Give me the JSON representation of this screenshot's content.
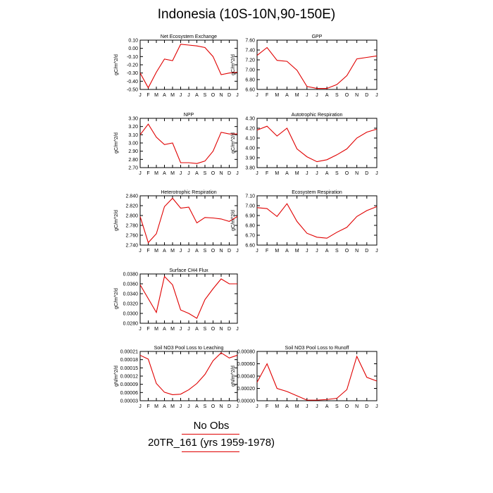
{
  "title": "Indonesia (10S-10N,90-150E)",
  "legend": {
    "obs_label": "No Obs",
    "case_label": "20TR_161 (yrs 1959-1978)",
    "line_color": "#e00000"
  },
  "chart_data": [
    {
      "type": "line",
      "title": "Net Ecosystem Exchange",
      "ylabel": "gC/m^2/d",
      "categories": [
        "J",
        "F",
        "M",
        "A",
        "M",
        "J",
        "J",
        "A",
        "S",
        "O",
        "N",
        "D",
        "J"
      ],
      "yticks": [
        "0.10",
        "0.00",
        "-0.10",
        "-0.20",
        "-0.30",
        "-0.40",
        "-0.50"
      ],
      "ylim": [
        -0.5,
        0.1
      ],
      "values": [
        -0.3,
        -0.48,
        -0.29,
        -0.13,
        -0.15,
        0.05,
        0.04,
        0.03,
        0.01,
        -0.1,
        -0.32,
        -0.3,
        -0.29
      ]
    },
    {
      "type": "line",
      "title": "GPP",
      "ylabel": "gC/m^2/d",
      "categories": [
        "J",
        "F",
        "M",
        "A",
        "M",
        "J",
        "J",
        "A",
        "S",
        "O",
        "N",
        "D",
        "J"
      ],
      "yticks": [
        "7.60",
        "7.40",
        "7.20",
        "7.00",
        "6.80",
        "6.60"
      ],
      "ylim": [
        6.6,
        7.6
      ],
      "values": [
        7.29,
        7.45,
        7.19,
        7.17,
        6.99,
        6.66,
        6.62,
        6.62,
        6.7,
        6.88,
        7.22,
        7.25,
        7.28
      ]
    },
    {
      "type": "line",
      "title": "NPP",
      "ylabel": "gC/m^2/d",
      "categories": [
        "J",
        "F",
        "M",
        "A",
        "M",
        "J",
        "J",
        "A",
        "S",
        "O",
        "N",
        "D",
        "J"
      ],
      "yticks": [
        "3.30",
        "3.20",
        "3.10",
        "3.00",
        "2.90",
        "2.80",
        "2.70"
      ],
      "ylim": [
        2.7,
        3.3
      ],
      "values": [
        3.1,
        3.23,
        3.07,
        2.98,
        3.0,
        2.76,
        2.76,
        2.75,
        2.78,
        2.9,
        3.13,
        3.11,
        3.11
      ]
    },
    {
      "type": "line",
      "title": "Autotrophic Respiration",
      "ylabel": "gC/m^2/d",
      "categories": [
        "J",
        "F",
        "M",
        "A",
        "M",
        "J",
        "J",
        "A",
        "S",
        "O",
        "N",
        "D",
        "J"
      ],
      "yticks": [
        "4.30",
        "4.20",
        "4.10",
        "4.00",
        "3.90",
        "3.80"
      ],
      "ylim": [
        3.8,
        4.3
      ],
      "values": [
        4.18,
        4.22,
        4.12,
        4.2,
        3.99,
        3.91,
        3.86,
        3.88,
        3.93,
        3.99,
        4.1,
        4.16,
        4.19
      ]
    },
    {
      "type": "line",
      "title": "Heterotrophic Respiration",
      "ylabel": "gC/m^2/d",
      "categories": [
        "J",
        "F",
        "M",
        "A",
        "M",
        "J",
        "J",
        "A",
        "S",
        "O",
        "N",
        "D",
        "J"
      ],
      "yticks": [
        "2.840",
        "2.820",
        "2.800",
        "2.780",
        "2.760",
        "2.740"
      ],
      "ylim": [
        2.74,
        2.84
      ],
      "values": [
        2.798,
        2.745,
        2.763,
        2.818,
        2.835,
        2.815,
        2.817,
        2.785,
        2.796,
        2.795,
        2.793,
        2.788,
        2.798
      ]
    },
    {
      "type": "line",
      "title": "Ecosystem Respiration",
      "ylabel": "gC/m^2/d",
      "categories": [
        "J",
        "F",
        "M",
        "A",
        "M",
        "J",
        "J",
        "A",
        "S",
        "O",
        "N",
        "D",
        "J"
      ],
      "yticks": [
        "7.10",
        "7.00",
        "6.90",
        "6.80",
        "6.70",
        "6.60"
      ],
      "ylim": [
        6.6,
        7.1
      ],
      "values": [
        6.98,
        6.97,
        6.89,
        7.02,
        6.84,
        6.72,
        6.68,
        6.67,
        6.73,
        6.78,
        6.89,
        6.95,
        6.99
      ]
    },
    {
      "type": "line",
      "title": "Surface CH4 Flux",
      "ylabel": "gC/m^2/d",
      "categories": [
        "J",
        "F",
        "M",
        "A",
        "M",
        "J",
        "J",
        "A",
        "S",
        "O",
        "N",
        "D",
        "J"
      ],
      "yticks": [
        "0.0380",
        "0.0360",
        "0.0340",
        "0.0320",
        "0.0300",
        "0.0280"
      ],
      "ylim": [
        0.028,
        0.038
      ],
      "values": [
        0.0358,
        0.033,
        0.0302,
        0.0375,
        0.0358,
        0.0307,
        0.03,
        0.029,
        0.0328,
        0.035,
        0.037,
        0.036,
        0.036
      ]
    },
    {
      "type": "line",
      "title": "Soil NO3 Pool Loss to Leaching",
      "ylabel": "gN/m^2/d",
      "categories": [
        "J",
        "F",
        "M",
        "A",
        "M",
        "J",
        "J",
        "A",
        "S",
        "O",
        "N",
        "D",
        "J"
      ],
      "yticks": [
        "0.00021",
        "0.00018",
        "0.00015",
        "0.00012",
        "0.00009",
        "0.00006",
        "0.00003"
      ],
      "ylim": [
        3e-05,
        0.00021
      ],
      "values": [
        0.000196,
        0.000182,
        9.3e-05,
        6.1e-05,
        5.2e-05,
        5.4e-05,
        7e-05,
        9.3e-05,
        0.000126,
        0.000176,
        0.000205,
        0.000186,
        0.000196
      ]
    },
    {
      "type": "line",
      "title": "Soil NO3 Pool Loss to Runoff",
      "ylabel": "gN/m^2/d",
      "categories": [
        "J",
        "F",
        "M",
        "A",
        "M",
        "J",
        "J",
        "A",
        "S",
        "O",
        "N",
        "D",
        "J"
      ],
      "yticks": [
        "0.00080",
        "0.00060",
        "0.00040",
        "0.00020",
        "0.00000"
      ],
      "ylim": [
        0.0,
        0.0008
      ],
      "values": [
        0.0003,
        0.0006,
        0.0002,
        0.00015,
        8e-05,
        1e-05,
        1e-05,
        2e-05,
        4e-05,
        0.00018,
        0.00072,
        0.00038,
        0.00032
      ]
    }
  ]
}
